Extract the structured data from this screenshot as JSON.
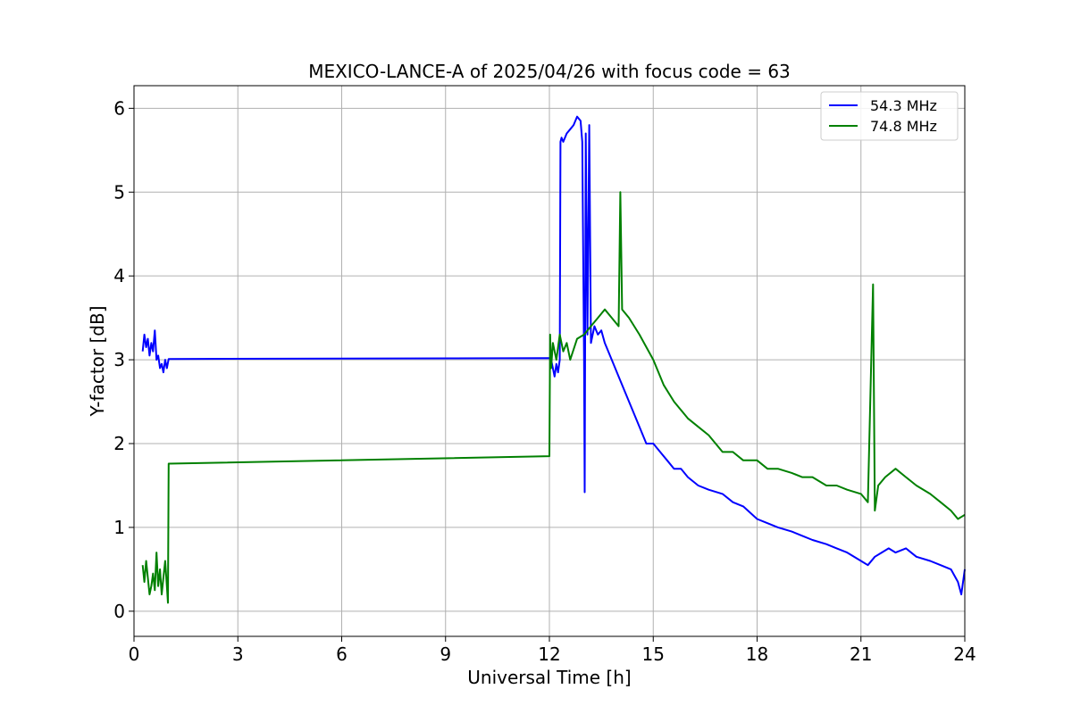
{
  "chart_data": {
    "type": "line",
    "title": "MEXICO-LANCE-A of 2025/04/26 with focus code = 63",
    "xlabel": "Universal Time [h]",
    "ylabel": "Y-factor [dB]",
    "xlim": [
      0,
      24
    ],
    "ylim": [
      -0.3,
      6.27
    ],
    "xticks": [
      0,
      3,
      6,
      9,
      12,
      15,
      18,
      21,
      24
    ],
    "yticks": [
      0,
      1,
      2,
      3,
      4,
      5,
      6
    ],
    "grid": true,
    "legend_position": "top-right",
    "series": [
      {
        "name": "  54.3 MHz",
        "color": "#0000ff",
        "x": [
          0.25,
          0.3,
          0.35,
          0.4,
          0.45,
          0.5,
          0.55,
          0.6,
          0.65,
          0.7,
          0.75,
          0.8,
          0.85,
          0.9,
          0.95,
          1.0,
          12.0,
          12.05,
          12.1,
          12.15,
          12.2,
          12.25,
          12.3,
          12.32,
          12.35,
          12.4,
          12.5,
          12.6,
          12.7,
          12.8,
          12.9,
          12.95,
          13.0,
          13.02,
          13.05,
          13.1,
          13.15,
          13.2,
          13.3,
          13.4,
          13.5,
          13.6,
          13.8,
          14.0,
          14.2,
          14.4,
          14.6,
          14.8,
          15.0,
          15.2,
          15.4,
          15.6,
          15.8,
          16.0,
          16.3,
          16.6,
          17.0,
          17.3,
          17.6,
          18.0,
          18.3,
          18.6,
          19.0,
          19.3,
          19.6,
          20.0,
          20.3,
          20.6,
          21.0,
          21.2,
          21.4,
          21.6,
          21.8,
          22.0,
          22.3,
          22.6,
          23.0,
          23.3,
          23.6,
          23.8,
          23.9,
          24.0
        ],
        "y": [
          3.1,
          3.3,
          3.15,
          3.25,
          3.05,
          3.2,
          3.1,
          3.35,
          3.0,
          3.05,
          2.9,
          2.95,
          2.85,
          3.0,
          2.9,
          3.01,
          3.02,
          3.0,
          2.9,
          2.8,
          2.95,
          2.85,
          3.0,
          5.6,
          5.65,
          5.6,
          5.7,
          5.75,
          5.8,
          5.9,
          5.85,
          5.6,
          3.0,
          1.42,
          5.7,
          3.3,
          5.8,
          3.2,
          3.4,
          3.3,
          3.35,
          3.2,
          3.0,
          2.8,
          2.6,
          2.4,
          2.2,
          2.0,
          2.0,
          1.9,
          1.8,
          1.7,
          1.7,
          1.6,
          1.5,
          1.45,
          1.4,
          1.3,
          1.25,
          1.1,
          1.05,
          1.0,
          0.95,
          0.9,
          0.85,
          0.8,
          0.75,
          0.7,
          0.6,
          0.55,
          0.65,
          0.7,
          0.75,
          0.7,
          0.75,
          0.65,
          0.6,
          0.55,
          0.5,
          0.35,
          0.2,
          0.5
        ]
      },
      {
        "name": "  74.8 MHz",
        "color": "#008000",
        "x": [
          0.25,
          0.3,
          0.35,
          0.4,
          0.45,
          0.5,
          0.55,
          0.6,
          0.65,
          0.7,
          0.75,
          0.8,
          0.85,
          0.9,
          0.95,
          0.98,
          1.0,
          12.0,
          12.02,
          12.05,
          12.1,
          12.2,
          12.3,
          12.4,
          12.5,
          12.6,
          12.8,
          13.0,
          13.2,
          13.4,
          13.6,
          13.8,
          14.0,
          14.05,
          14.1,
          14.3,
          14.6,
          15.0,
          15.3,
          15.6,
          16.0,
          16.3,
          16.6,
          17.0,
          17.3,
          17.6,
          18.0,
          18.3,
          18.6,
          19.0,
          19.3,
          19.6,
          20.0,
          20.3,
          20.6,
          21.0,
          21.2,
          21.35,
          21.4,
          21.5,
          21.7,
          22.0,
          22.3,
          22.6,
          23.0,
          23.3,
          23.6,
          23.8,
          24.0
        ],
        "y": [
          0.55,
          0.35,
          0.6,
          0.4,
          0.2,
          0.3,
          0.45,
          0.25,
          0.7,
          0.3,
          0.5,
          0.2,
          0.4,
          0.6,
          0.3,
          0.1,
          1.76,
          1.85,
          3.3,
          2.9,
          3.2,
          3.0,
          3.3,
          3.1,
          3.2,
          3.0,
          3.25,
          3.3,
          3.4,
          3.5,
          3.6,
          3.5,
          3.4,
          5.0,
          3.6,
          3.5,
          3.3,
          3.0,
          2.7,
          2.5,
          2.3,
          2.2,
          2.1,
          1.9,
          1.9,
          1.8,
          1.8,
          1.7,
          1.7,
          1.65,
          1.6,
          1.6,
          1.5,
          1.5,
          1.45,
          1.4,
          1.3,
          3.9,
          1.2,
          1.5,
          1.6,
          1.7,
          1.6,
          1.5,
          1.4,
          1.3,
          1.2,
          1.1,
          1.15
        ]
      }
    ]
  }
}
